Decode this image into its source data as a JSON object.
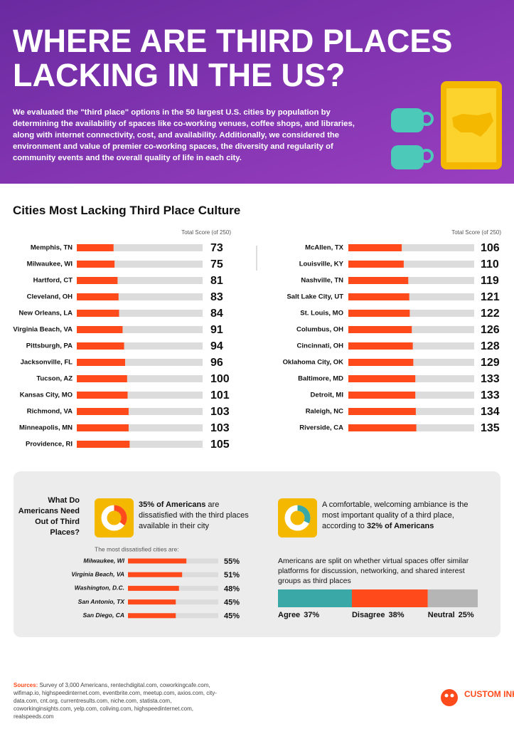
{
  "header": {
    "title_lines": [
      "WHERE ARE THIRD PLACES",
      "LACKING IN THE US?"
    ],
    "intro": "We evaluated the \"third place\" options in the 50 largest U.S. cities by population by determining the availability of spaces like co-working venues, coffee shops, and libraries, along with internet connectivity, cost, and availability. Additionally, we considered the environment and value of premier co-working spaces, the diversity and regularity of community events and the overall quality of life in each city."
  },
  "section_title": "Cities Most Lacking Third Place Culture",
  "chart_data": [
    {
      "type": "bar",
      "x_label": "Total Score (of 250)",
      "categories": [
        "Memphis, TN",
        "Milwaukee, WI",
        "Hartford, CT",
        "Cleveland, OH",
        "New Orleans, LA",
        "Virginia Beach, VA",
        "Pittsburgh, PA",
        "Jacksonville, FL",
        "Tucson, AZ",
        "Kansas City, MO",
        "Richmond, VA",
        "Minneapolis, MN",
        "Providence, RI"
      ],
      "values": [
        73,
        75,
        81,
        83,
        84,
        91,
        94,
        96,
        100,
        101,
        103,
        103,
        105
      ],
      "xlim": [
        0,
        250
      ],
      "color": "#ff4a1c"
    },
    {
      "type": "bar",
      "x_label": "Total Score (of 250)",
      "categories": [
        "McAllen, TX",
        "Louisville, KY",
        "Nashville, TN",
        "Salt Lake City, UT",
        "St. Louis, MO",
        "Columbus, OH",
        "Cincinnati, OH",
        "Oklahoma City, OK",
        "Baltimore, MD",
        "Detroit, MI",
        "Raleigh, NC",
        "Riverside, CA"
      ],
      "values": [
        106,
        110,
        119,
        121,
        122,
        126,
        128,
        129,
        133,
        133,
        134,
        135
      ],
      "xlim": [
        0,
        250
      ],
      "color": "#ff4a1c"
    },
    {
      "type": "bar",
      "title": "The most dissatisfied cities are:",
      "categories": [
        "Milwaukee, WI",
        "Virginia Beach, VA",
        "Washington, D.C.",
        "San Antonio, TX",
        "San Diego, CA"
      ],
      "values": [
        55,
        51,
        48,
        45,
        45
      ],
      "value_labels": [
        "55%",
        "51%",
        "48%",
        "45%",
        "45%"
      ],
      "xlim": [
        0,
        85
      ],
      "color": "#ff4a1c"
    },
    {
      "type": "stacked_bar",
      "title": "Americans are split on whether virtual spaces offer similar platforms for discussion, networking, and shared interest groups as third places",
      "categories": [
        "Agree",
        "Disagree",
        "Neutral"
      ],
      "values": [
        37,
        38,
        25
      ],
      "value_labels": [
        "37%",
        "38%",
        "25%"
      ],
      "colors": [
        "#3aa8a6",
        "#ff4a1c",
        "#b5b5b5"
      ],
      "xlim": [
        0,
        100
      ]
    }
  ],
  "needs_title": "What Do Americans Need Out of Third Places?",
  "stats": [
    {
      "value": 35,
      "color": "#ff4a1c",
      "bold": "35% of Americans",
      "text": "are dissatisfied with the third places available in their city"
    },
    {
      "value": 32,
      "color": "#3aa8a6",
      "text": "A comfortable, welcoming ambiance is the most important quality of a third place, according to",
      "bold": "32% of Americans"
    }
  ],
  "sources": {
    "label": "Sources:",
    "text": "Survey of 3,000 Americans, rentechdigital.com, coworkingcafe.com, wifimap.io, highspeedinternet.com, eventbrite.com, meetup.com, axios.com, city-data.com, cnt.org, currentresults.com, niche.com, statista.com, coworkinginsights.com, yelp.com, coliving.com, highspeedinternet.com, realspeeds.com"
  },
  "logo": "CUSTOM INK"
}
